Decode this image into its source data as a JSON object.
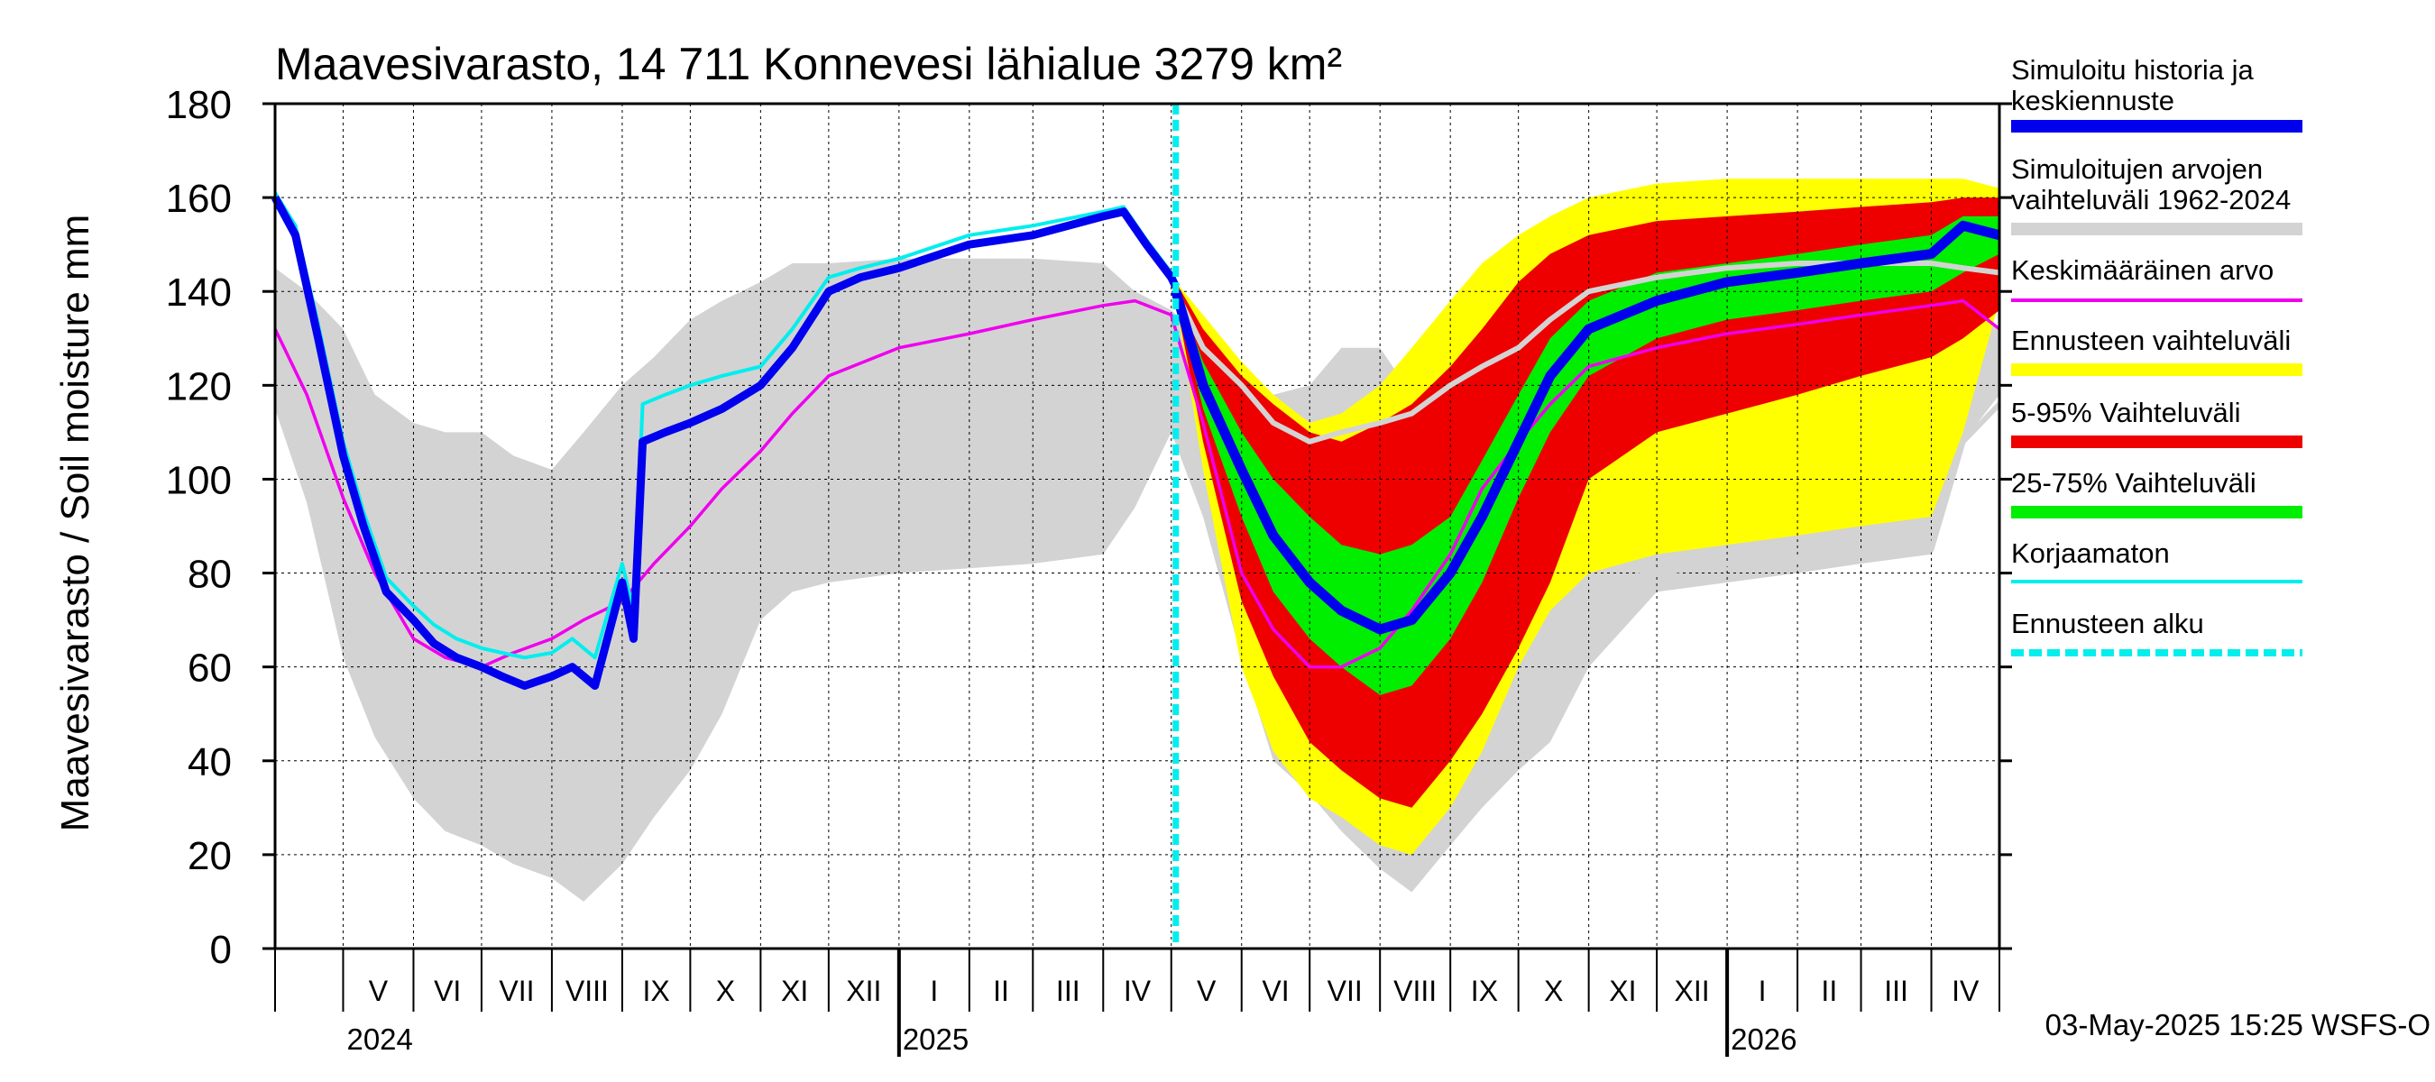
{
  "chart_data": {
    "type": "area",
    "title": "Maavesivarasto, 14 711 Konnevesi lähialue 3279 km²",
    "ylabel": "Maavesivarasto / Soil moisture   mm",
    "ylim": [
      0,
      180
    ],
    "yticks": [
      0,
      20,
      40,
      60,
      80,
      100,
      120,
      140,
      160,
      180
    ],
    "xlim": [
      "2024-04-01",
      "2026-05-01"
    ],
    "forecast_start": "2025-05-03",
    "grid": true,
    "legend_position": "right",
    "month_labels": [
      "V",
      "VI",
      "VII",
      "VIII",
      "IX",
      "X",
      "XI",
      "XII",
      "I",
      "II",
      "III",
      "IV",
      "V",
      "VI",
      "VII",
      "VIII",
      "IX",
      "X",
      "XI",
      "XII",
      "I",
      "II",
      "III",
      "IV"
    ],
    "year_labels": [
      "2024",
      "2025",
      "2026"
    ],
    "timestamp": "03-May-2025 15:25 WSFS-O",
    "legend": [
      {
        "key": "history",
        "label": "Simuloitu historia ja keskiennuste",
        "color": "#0000ee",
        "style": "thick"
      },
      {
        "key": "range",
        "label": "Simuloitujen arvojen vaihteluväli 1962-2024",
        "color": "#d3d3d3",
        "style": "thick"
      },
      {
        "key": "mean",
        "label": "Keskimääräinen arvo",
        "color": "#ee00ee",
        "style": "thin"
      },
      {
        "key": "fc_range",
        "label": "Ennusteen vaihteluväli",
        "color": "#ffff00",
        "style": "thick"
      },
      {
        "key": "p5_95",
        "label": "5-95% Vaihteluväli",
        "color": "#ee0000",
        "style": "thick"
      },
      {
        "key": "p25_75",
        "label": "25-75% Vaihteluväli",
        "color": "#00ee00",
        "style": "thick"
      },
      {
        "key": "raw",
        "label": "Korjaamaton",
        "color": "#00eeee",
        "style": "thin"
      },
      {
        "key": "fc_start",
        "label": "Ennusteen alku",
        "color": "#00eeee",
        "style": "dashed"
      }
    ],
    "series": {
      "hist_range": {
        "x": [
          "2024-04-01",
          "2024-04-15",
          "2024-05-01",
          "2024-05-15",
          "2024-06-01",
          "2024-06-15",
          "2024-07-01",
          "2024-07-15",
          "2024-08-01",
          "2024-08-15",
          "2024-09-01",
          "2024-09-15",
          "2024-10-01",
          "2024-10-15",
          "2024-11-01",
          "2024-11-15",
          "2024-12-01",
          "2025-01-01",
          "2025-02-01",
          "2025-03-01",
          "2025-04-01",
          "2025-04-15",
          "2025-05-01",
          "2025-05-15",
          "2025-06-01",
          "2025-06-15",
          "2025-07-01",
          "2025-07-15",
          "2025-08-01",
          "2025-08-15",
          "2025-09-01",
          "2025-09-15",
          "2025-10-01",
          "2025-10-15",
          "2025-11-01",
          "2025-12-01",
          "2026-01-01",
          "2026-02-01",
          "2026-03-01",
          "2026-04-01",
          "2026-04-15",
          "2026-05-01"
        ],
        "low": [
          115,
          95,
          62,
          45,
          32,
          25,
          22,
          18,
          15,
          10,
          18,
          28,
          38,
          50,
          70,
          76,
          78,
          80,
          81,
          82,
          84,
          94,
          110,
          92,
          62,
          40,
          33,
          25,
          17,
          12,
          22,
          30,
          38,
          44,
          60,
          76,
          78,
          80,
          82,
          84,
          108,
          118
        ],
        "high": [
          145,
          140,
          132,
          118,
          112,
          110,
          110,
          105,
          102,
          110,
          120,
          126,
          134,
          138,
          142,
          146,
          146,
          147,
          147,
          147,
          146,
          140,
          136,
          130,
          124,
          118,
          120,
          128,
          128,
          118,
          122,
          130,
          136,
          140,
          144,
          146,
          146,
          146,
          146,
          146,
          140,
          132
        ]
      },
      "fc_yellow": {
        "x": [
          "2025-05-03",
          "2025-05-15",
          "2025-06-01",
          "2025-06-15",
          "2025-07-01",
          "2025-07-15",
          "2025-08-01",
          "2025-08-15",
          "2025-09-01",
          "2025-09-15",
          "2025-10-01",
          "2025-10-15",
          "2025-11-01",
          "2025-12-01",
          "2026-01-01",
          "2026-02-01",
          "2026-03-01",
          "2026-04-01",
          "2026-04-15",
          "2026-05-01"
        ],
        "low": [
          138,
          102,
          60,
          42,
          32,
          28,
          22,
          20,
          30,
          42,
          60,
          72,
          80,
          84,
          86,
          88,
          90,
          92,
          110,
          138
        ],
        "high": [
          142,
          135,
          125,
          118,
          112,
          114,
          120,
          128,
          138,
          146,
          152,
          156,
          160,
          163,
          164,
          164,
          164,
          164,
          164,
          162
        ]
      },
      "fc_red": {
        "x": [
          "2025-05-03",
          "2025-05-15",
          "2025-06-01",
          "2025-06-15",
          "2025-07-01",
          "2025-07-15",
          "2025-08-01",
          "2025-08-15",
          "2025-09-01",
          "2025-09-15",
          "2025-10-01",
          "2025-10-15",
          "2025-11-01",
          "2025-12-01",
          "2026-01-01",
          "2026-02-01",
          "2026-03-01",
          "2026-04-01",
          "2026-04-15",
          "2026-05-01"
        ],
        "low": [
          138,
          108,
          74,
          58,
          44,
          38,
          32,
          30,
          40,
          50,
          64,
          78,
          100,
          110,
          114,
          118,
          122,
          126,
          130,
          136
        ],
        "high": [
          142,
          132,
          122,
          116,
          110,
          108,
          112,
          116,
          124,
          132,
          142,
          148,
          152,
          155,
          156,
          157,
          158,
          159,
          160,
          160
        ]
      },
      "fc_green": {
        "x": [
          "2025-05-03",
          "2025-05-15",
          "2025-06-01",
          "2025-06-15",
          "2025-07-01",
          "2025-07-15",
          "2025-08-01",
          "2025-08-15",
          "2025-09-01",
          "2025-09-15",
          "2025-10-01",
          "2025-10-15",
          "2025-11-01",
          "2025-12-01",
          "2026-01-01",
          "2026-02-01",
          "2026-03-01",
          "2026-04-01",
          "2026-04-15",
          "2026-05-01"
        ],
        "low": [
          139,
          115,
          92,
          76,
          66,
          60,
          54,
          56,
          66,
          78,
          96,
          110,
          122,
          130,
          134,
          136,
          138,
          140,
          144,
          148
        ],
        "high": [
          141,
          125,
          110,
          100,
          92,
          86,
          84,
          86,
          92,
          104,
          118,
          130,
          138,
          144,
          146,
          148,
          150,
          152,
          156,
          156
        ]
      },
      "mean": {
        "x": [
          "2024-04-01",
          "2024-04-15",
          "2024-05-01",
          "2024-05-15",
          "2024-06-01",
          "2024-06-15",
          "2024-07-01",
          "2024-07-15",
          "2024-08-01",
          "2024-08-15",
          "2024-09-01",
          "2024-09-15",
          "2024-10-01",
          "2024-10-15",
          "2024-11-01",
          "2024-11-15",
          "2024-12-01",
          "2025-01-01",
          "2025-02-01",
          "2025-03-01",
          "2025-04-01",
          "2025-04-15",
          "2025-05-01",
          "2025-05-15",
          "2025-06-01",
          "2025-06-15",
          "2025-07-01",
          "2025-07-15",
          "2025-08-01",
          "2025-08-15",
          "2025-09-01",
          "2025-09-15",
          "2025-10-01",
          "2025-10-15",
          "2025-11-01",
          "2025-12-01",
          "2026-01-01",
          "2026-02-01",
          "2026-03-01",
          "2026-04-01",
          "2026-04-15",
          "2026-05-01"
        ],
        "values": [
          132,
          118,
          96,
          80,
          66,
          62,
          60,
          63,
          66,
          70,
          74,
          82,
          90,
          98,
          106,
          114,
          122,
          128,
          131,
          134,
          137,
          138,
          135,
          112,
          80,
          68,
          60,
          60,
          64,
          72,
          84,
          98,
          108,
          116,
          124,
          128,
          131,
          133,
          135,
          137,
          138,
          132
        ]
      },
      "history": {
        "x": [
          "2024-04-01",
          "2024-04-10",
          "2024-04-20",
          "2024-05-01",
          "2024-05-10",
          "2024-05-20",
          "2024-06-01",
          "2024-06-10",
          "2024-06-20",
          "2024-07-01",
          "2024-07-10",
          "2024-07-20",
          "2024-08-01",
          "2024-08-10",
          "2024-08-20",
          "2024-09-01",
          "2024-09-06",
          "2024-09-10",
          "2024-09-20",
          "2024-10-01",
          "2024-10-15",
          "2024-11-01",
          "2024-11-15",
          "2024-12-01",
          "2024-12-15",
          "2025-01-01",
          "2025-02-01",
          "2025-03-01",
          "2025-04-01",
          "2025-04-10",
          "2025-04-20",
          "2025-05-01",
          "2025-05-03"
        ],
        "values": [
          160,
          152,
          130,
          105,
          90,
          76,
          70,
          65,
          62,
          60,
          58,
          56,
          58,
          60,
          56,
          78,
          66,
          108,
          110,
          112,
          115,
          120,
          128,
          140,
          143,
          145,
          150,
          152,
          156,
          157,
          150,
          143,
          141
        ]
      },
      "raw": {
        "x": [
          "2024-04-01",
          "2024-04-10",
          "2024-04-20",
          "2024-05-01",
          "2024-05-10",
          "2024-05-20",
          "2024-06-01",
          "2024-06-10",
          "2024-06-20",
          "2024-07-01",
          "2024-07-10",
          "2024-07-20",
          "2024-08-01",
          "2024-08-10",
          "2024-08-20",
          "2024-09-01",
          "2024-09-06",
          "2024-09-10",
          "2024-09-20",
          "2024-10-01",
          "2024-10-15",
          "2024-11-01",
          "2024-11-15",
          "2024-12-01",
          "2024-12-15",
          "2025-01-01",
          "2025-02-01",
          "2025-03-01",
          "2025-04-01",
          "2025-04-10",
          "2025-04-20",
          "2025-05-01",
          "2025-05-03"
        ],
        "values": [
          161,
          154,
          133,
          108,
          93,
          79,
          73,
          69,
          66,
          64,
          63,
          62,
          63,
          66,
          62,
          82,
          72,
          116,
          118,
          120,
          122,
          124,
          132,
          143,
          145,
          147,
          152,
          154,
          157,
          158,
          151,
          144,
          142
        ]
      },
      "hist_median": {
        "x": [
          "2025-05-03",
          "2025-05-15",
          "2025-06-01",
          "2025-06-15",
          "2025-07-01",
          "2025-07-15",
          "2025-08-01",
          "2025-08-15",
          "2025-09-01",
          "2025-09-15",
          "2025-10-01",
          "2025-10-15",
          "2025-11-01",
          "2025-12-01",
          "2026-01-01",
          "2026-02-01",
          "2026-03-01",
          "2026-04-01",
          "2026-04-15",
          "2026-05-01"
        ],
        "values": [
          140,
          128,
          120,
          112,
          108,
          110,
          112,
          114,
          120,
          124,
          128,
          134,
          140,
          143,
          145,
          146,
          146,
          146,
          145,
          144
        ]
      },
      "hist_low_line": {
        "x": [
          "2025-05-03",
          "2025-05-15",
          "2025-06-01",
          "2025-06-15",
          "2025-07-01",
          "2025-07-15",
          "2025-08-01",
          "2025-08-15",
          "2025-09-01",
          "2025-09-15",
          "2025-10-01",
          "2025-10-15",
          "2025-11-01",
          "2025-12-01",
          "2026-01-01",
          "2026-02-01",
          "2026-03-01",
          "2026-04-01",
          "2026-04-15",
          "2026-05-01"
        ],
        "values": [
          null,
          null,
          null,
          null,
          null,
          null,
          null,
          null,
          null,
          null,
          null,
          null,
          78,
          80,
          82,
          83,
          84,
          85,
          108,
          116
        ]
      },
      "forecast_median": {
        "x": [
          "2025-05-03",
          "2025-05-15",
          "2025-06-01",
          "2025-06-15",
          "2025-07-01",
          "2025-07-15",
          "2025-08-01",
          "2025-08-15",
          "2025-09-01",
          "2025-09-15",
          "2025-10-01",
          "2025-10-15",
          "2025-11-01",
          "2025-12-01",
          "2026-01-01",
          "2026-02-01",
          "2026-03-01",
          "2026-04-01",
          "2026-04-15",
          "2026-05-01"
        ],
        "values": [
          140,
          120,
          102,
          88,
          78,
          72,
          68,
          70,
          80,
          92,
          108,
          122,
          132,
          138,
          142,
          144,
          146,
          148,
          154,
          152
        ]
      }
    }
  }
}
